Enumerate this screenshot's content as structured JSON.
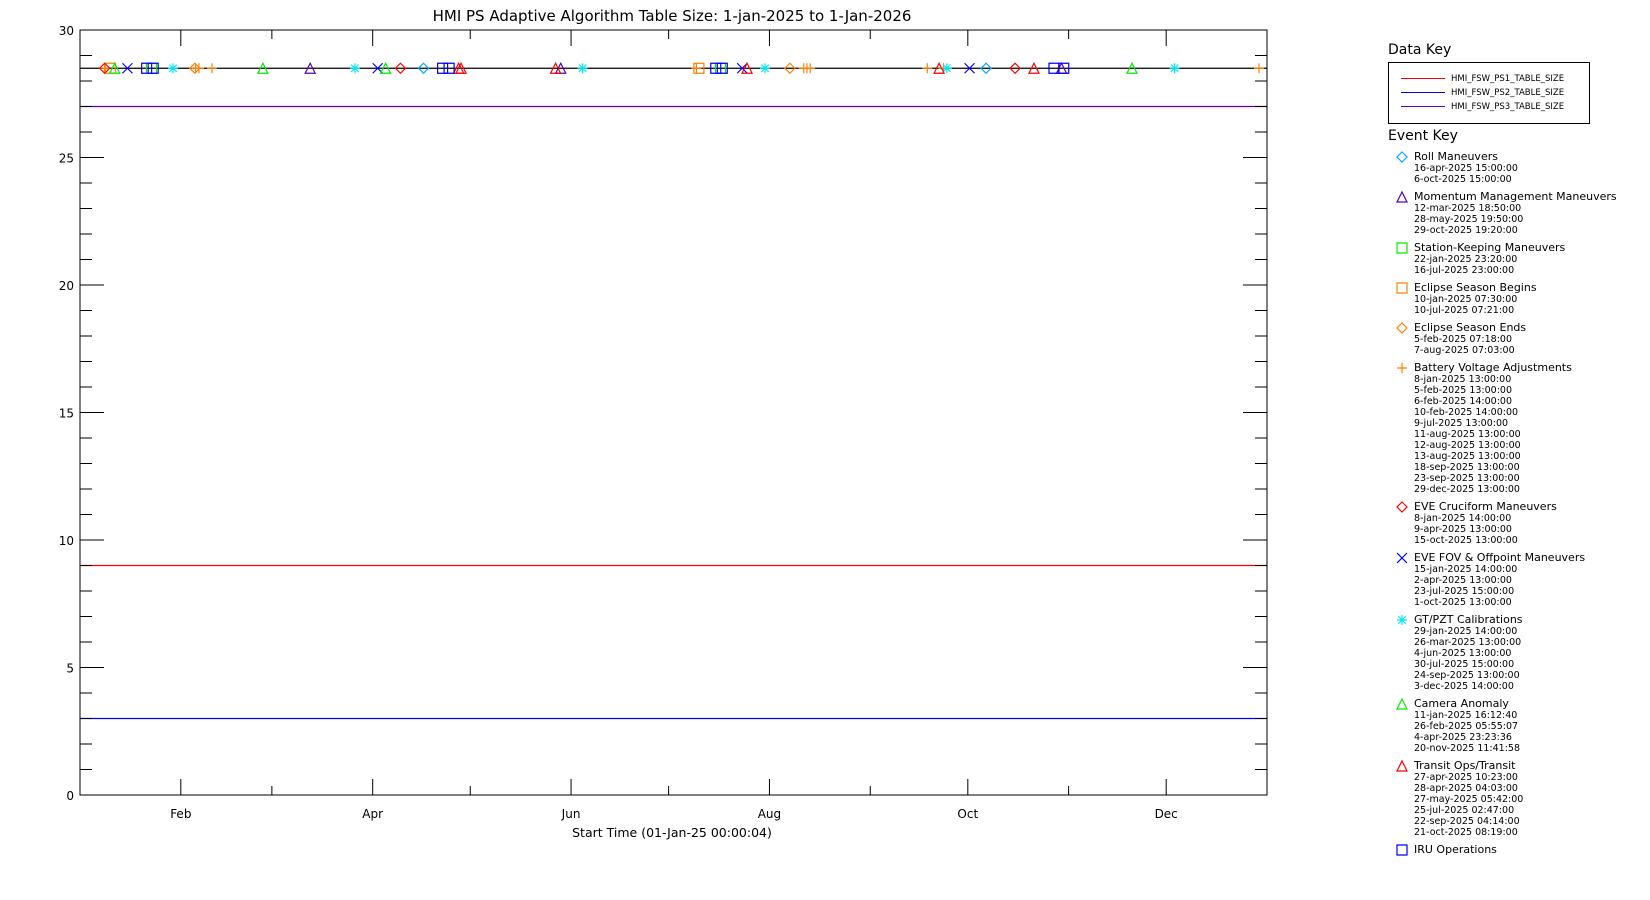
{
  "chart_data": {
    "type": "line",
    "title": "HMI PS Adaptive Algorithm Table Size: 1-jan-2025 to 1-Jan-2026",
    "xlabel": "Start Time (01-Jan-25 00:00:04)",
    "ylabel": "",
    "xlim": [
      "2025-01-01",
      "2026-01-01"
    ],
    "ylim": [
      0,
      30
    ],
    "yticks": [
      0,
      5,
      10,
      15,
      20,
      25,
      30
    ],
    "xtick_labels": [
      {
        "label": "Feb",
        "date": "2025-02-01"
      },
      {
        "label": "Apr",
        "date": "2025-04-01"
      },
      {
        "label": "Jun",
        "date": "2025-06-01"
      },
      {
        "label": "Aug",
        "date": "2025-08-01"
      },
      {
        "label": "Oct",
        "date": "2025-10-01"
      },
      {
        "label": "Dec",
        "date": "2025-12-01"
      }
    ],
    "grid": false,
    "legend_placement": "right",
    "data_key_title": "Data Key",
    "series": [
      {
        "name": "HMI_FSW_PS1_TABLE_SIZE",
        "color": "#ff0000",
        "x": [
          "2025-01-01",
          "2026-01-01"
        ],
        "values": [
          9,
          9
        ]
      },
      {
        "name": "HMI_FSW_PS2_TABLE_SIZE",
        "color": "#0000ff",
        "x": [
          "2025-01-01",
          "2026-01-01"
        ],
        "values": [
          3,
          3
        ]
      },
      {
        "name": "HMI_FSW_PS3_TABLE_SIZE",
        "color": "#6000b0",
        "x": [
          "2025-01-01",
          "2026-01-01"
        ],
        "values": [
          27,
          27
        ]
      }
    ],
    "event_baseline": 28.5,
    "event_key_title": "Event Key",
    "events": [
      {
        "name": "Roll Maneuvers",
        "symbol": "diamond",
        "color": "#00a8ff",
        "dates": [
          "16-apr-2025 15:00:00",
          "6-oct-2025 15:00:00"
        ]
      },
      {
        "name": "Momentum Management Maneuvers",
        "symbol": "triangle",
        "color": "#5a00b4",
        "dates": [
          "12-mar-2025 18:50:00",
          "28-may-2025 19:50:00",
          "29-oct-2025 19:20:00"
        ]
      },
      {
        "name": "Station-Keeping Maneuvers",
        "symbol": "square",
        "color": "#00ee00",
        "dates": [
          "22-jan-2025 23:20:00",
          "16-jul-2025 23:00:00"
        ]
      },
      {
        "name": "Eclipse Season Begins",
        "symbol": "square",
        "color": "#ff8000",
        "dates": [
          "10-jan-2025 07:30:00",
          "10-jul-2025 07:21:00"
        ]
      },
      {
        "name": "Eclipse Season Ends",
        "symbol": "diamond",
        "color": "#ff8000",
        "dates": [
          "5-feb-2025 07:18:00",
          "7-aug-2025 07:03:00"
        ]
      },
      {
        "name": "Battery Voltage Adjustments",
        "symbol": "plus",
        "color": "#ff8000",
        "dates": [
          "8-jan-2025 13:00:00",
          "5-feb-2025 13:00:00",
          "6-feb-2025 14:00:00",
          "10-feb-2025 14:00:00",
          "9-jul-2025 13:00:00",
          "11-aug-2025 13:00:00",
          "12-aug-2025 13:00:00",
          "13-aug-2025 13:00:00",
          "18-sep-2025 13:00:00",
          "23-sep-2025 13:00:00",
          "29-dec-2025 13:00:00"
        ]
      },
      {
        "name": "EVE Cruciform Maneuvers",
        "symbol": "diamond",
        "color": "#ff0000",
        "dates": [
          "8-jan-2025 14:00:00",
          "9-apr-2025 13:00:00",
          "15-oct-2025 13:00:00"
        ]
      },
      {
        "name": "EVE FOV & Offpoint Maneuvers",
        "symbol": "x",
        "color": "#0000ff",
        "dates": [
          "15-jan-2025 14:00:00",
          "2-apr-2025 13:00:00",
          "23-jul-2025 15:00:00",
          "1-oct-2025 13:00:00"
        ]
      },
      {
        "name": "GT/PZT Calibrations",
        "symbol": "asterisk",
        "color": "#00e8f0",
        "dates": [
          "29-jan-2025 14:00:00",
          "26-mar-2025 13:00:00",
          "4-jun-2025 13:00:00",
          "30-jul-2025 15:00:00",
          "24-sep-2025 13:00:00",
          "3-dec-2025 14:00:00"
        ]
      },
      {
        "name": "Camera Anomaly",
        "symbol": "triangle",
        "color": "#00ee00",
        "dates": [
          "11-jan-2025 16:12:40",
          "26-feb-2025 05:55:07",
          "4-apr-2025 23:23:36",
          "20-nov-2025 11:41:58"
        ]
      },
      {
        "name": "Transit Ops/Transit",
        "symbol": "triangle",
        "color": "#ff0000",
        "dates": [
          "27-apr-2025 10:23:00",
          "28-apr-2025 04:03:00",
          "27-may-2025 05:42:00",
          "25-jul-2025 02:47:00",
          "22-sep-2025 04:14:00",
          "21-oct-2025 08:19:00"
        ]
      },
      {
        "name": "IRU Operations",
        "symbol": "square",
        "color": "#0000ff",
        "dates": [],
        "plotted_dates_estimated": [
          "2025-01-21",
          "2025-01-23",
          "2025-04-22",
          "2025-04-24",
          "2025-07-15",
          "2025-07-17",
          "2025-10-27",
          "2025-10-30"
        ]
      }
    ]
  }
}
